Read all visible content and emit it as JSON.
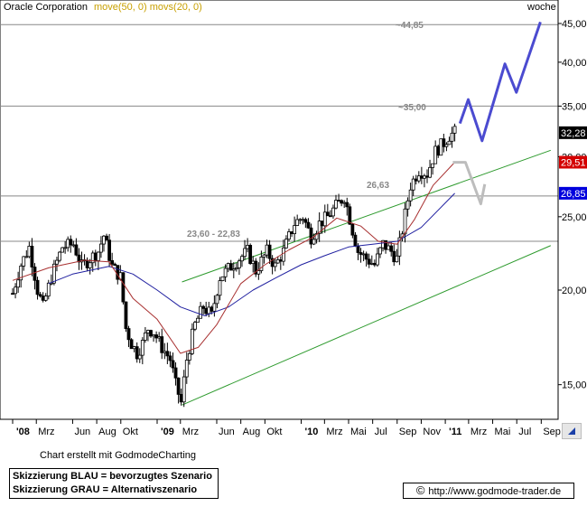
{
  "header": {
    "ticker_label": "Oracle Corporation",
    "indicators": "move(50, 0) movs(20, 0)",
    "period": "woche"
  },
  "annotations": {
    "target_high": "~44,85",
    "target_mid": "~35,00",
    "level_26": "26,63",
    "level_23": "23,60 - 22,83"
  },
  "price_badges": {
    "last_close": "32,28",
    "ma20_value": "29,51",
    "ma50_value": "26,85"
  },
  "footer": {
    "credit": "Chart erstellt mit GodmodeCharting",
    "legend_blue": "Skizzierung BLAU = bevorzugtes Szenario",
    "legend_gray": "Skizzierung GRAU = Alternativszenario",
    "url": "http://www.godmode-trader.de",
    "copyright_symbol": "©"
  },
  "chart_data": {
    "type": "candlestick",
    "title": "Oracle Corporation",
    "y_axis": {
      "scale": "log",
      "ylim": [
        13.5,
        46
      ],
      "ticks": [
        15,
        20,
        25,
        30,
        35,
        40,
        45
      ],
      "tick_labels": [
        "15,00",
        "20,00",
        "25,00",
        "30,00",
        "35,00",
        "40,00",
        "45,00"
      ]
    },
    "x_axis": {
      "range": [
        "2008-01-01",
        "2011-09-30"
      ],
      "ticks": [
        {
          "date": "2008-01-01",
          "label": "'08"
        },
        {
          "date": "2008-03-01",
          "label": "Mrz"
        },
        {
          "date": "2008-06-01",
          "label": "Jun"
        },
        {
          "date": "2008-08-01",
          "label": "Aug"
        },
        {
          "date": "2008-10-01",
          "label": "Okt"
        },
        {
          "date": "2009-01-01",
          "label": "'09"
        },
        {
          "date": "2009-03-01",
          "label": "Mrz"
        },
        {
          "date": "2009-06-01",
          "label": "Jun"
        },
        {
          "date": "2009-08-01",
          "label": "Aug"
        },
        {
          "date": "2009-10-01",
          "label": "Okt"
        },
        {
          "date": "2010-01-01",
          "label": "'10"
        },
        {
          "date": "2010-03-01",
          "label": "Mrz"
        },
        {
          "date": "2010-05-01",
          "label": "Mai"
        },
        {
          "date": "2010-07-01",
          "label": "Jul"
        },
        {
          "date": "2010-09-01",
          "label": "Sep"
        },
        {
          "date": "2010-11-01",
          "label": "Nov"
        },
        {
          "date": "2011-01-01",
          "label": "'11"
        },
        {
          "date": "2011-03-01",
          "label": "Mrz"
        },
        {
          "date": "2011-05-01",
          "label": "Mai"
        },
        {
          "date": "2011-07-01",
          "label": "Jul"
        },
        {
          "date": "2011-09-01",
          "label": "Sep"
        }
      ]
    },
    "horizontal_levels": [
      44.85,
      35.0,
      26.63,
      23.2
    ],
    "price_path": [
      [
        "2008-01-01",
        19.8
      ],
      [
        "2008-01-22",
        21.6
      ],
      [
        "2008-02-12",
        22.8
      ],
      [
        "2008-03-04",
        20.0
      ],
      [
        "2008-03-18",
        19.0
      ],
      [
        "2008-04-08",
        20.8
      ],
      [
        "2008-05-06",
        22.8
      ],
      [
        "2008-06-03",
        23.0
      ],
      [
        "2008-06-24",
        21.5
      ],
      [
        "2008-07-15",
        22.0
      ],
      [
        "2008-08-05",
        22.5
      ],
      [
        "2008-08-19",
        23.6
      ],
      [
        "2008-09-09",
        21.5
      ],
      [
        "2008-09-30",
        20.8
      ],
      [
        "2008-10-14",
        17.8
      ],
      [
        "2008-10-28",
        17.0
      ],
      [
        "2008-11-11",
        16.5
      ],
      [
        "2008-11-25",
        17.0
      ],
      [
        "2008-12-09",
        17.8
      ],
      [
        "2008-12-23",
        17.6
      ],
      [
        "2009-01-13",
        16.8
      ],
      [
        "2009-02-03",
        16.2
      ],
      [
        "2009-02-17",
        15.0
      ],
      [
        "2009-03-03",
        14.2
      ],
      [
        "2009-03-17",
        16.2
      ],
      [
        "2009-04-07",
        18.0
      ],
      [
        "2009-04-28",
        19.0
      ],
      [
        "2009-05-19",
        18.5
      ],
      [
        "2009-06-09",
        20.8
      ],
      [
        "2009-07-07",
        21.5
      ],
      [
        "2009-07-28",
        22.0
      ],
      [
        "2009-08-18",
        22.5
      ],
      [
        "2009-09-08",
        21.2
      ],
      [
        "2009-10-06",
        22.5
      ],
      [
        "2009-10-27",
        21.5
      ],
      [
        "2009-11-17",
        22.5
      ],
      [
        "2009-12-15",
        24.5
      ],
      [
        "2010-01-05",
        25.0
      ],
      [
        "2010-01-26",
        23.5
      ],
      [
        "2010-02-16",
        24.5
      ],
      [
        "2010-03-09",
        25.0
      ],
      [
        "2010-03-30",
        25.8
      ],
      [
        "2010-04-20",
        26.6
      ],
      [
        "2010-05-11",
        24.0
      ],
      [
        "2010-05-25",
        22.5
      ],
      [
        "2010-06-15",
        22.0
      ],
      [
        "2010-07-06",
        21.6
      ],
      [
        "2010-07-27",
        23.0
      ],
      [
        "2010-08-17",
        22.5
      ],
      [
        "2010-08-31",
        22.0
      ],
      [
        "2010-09-14",
        24.0
      ],
      [
        "2010-10-05",
        27.5
      ],
      [
        "2010-10-26",
        28.8
      ],
      [
        "2010-11-16",
        28.5
      ],
      [
        "2010-12-07",
        30.5
      ],
      [
        "2010-12-28",
        31.3
      ],
      [
        "2011-01-11",
        32.0
      ],
      [
        "2011-01-25",
        32.3
      ]
    ],
    "ma20": [
      [
        "2008-01-01",
        20.6
      ],
      [
        "2008-04-01",
        21.4
      ],
      [
        "2008-07-01",
        21.9
      ],
      [
        "2008-09-01",
        21.8
      ],
      [
        "2008-11-01",
        19.5
      ],
      [
        "2009-01-01",
        18.3
      ],
      [
        "2009-03-01",
        16.5
      ],
      [
        "2009-04-15",
        16.8
      ],
      [
        "2009-06-01",
        18.0
      ],
      [
        "2009-08-01",
        20.4
      ],
      [
        "2009-10-01",
        21.6
      ],
      [
        "2009-12-01",
        22.6
      ],
      [
        "2010-02-01",
        23.5
      ],
      [
        "2010-04-01",
        24.9
      ],
      [
        "2010-06-01",
        24.3
      ],
      [
        "2010-07-15",
        23.2
      ],
      [
        "2010-09-01",
        23.0
      ],
      [
        "2010-10-15",
        24.8
      ],
      [
        "2010-12-01",
        27.5
      ],
      [
        "2011-01-25",
        29.51
      ]
    ],
    "ma50": [
      [
        "2008-04-01",
        20.4
      ],
      [
        "2008-06-01",
        21.0
      ],
      [
        "2008-09-01",
        21.5
      ],
      [
        "2008-11-01",
        21.0
      ],
      [
        "2009-01-01",
        20.0
      ],
      [
        "2009-03-01",
        19.0
      ],
      [
        "2009-05-01",
        18.5
      ],
      [
        "2009-07-01",
        19.0
      ],
      [
        "2009-09-01",
        20.0
      ],
      [
        "2009-11-01",
        20.8
      ],
      [
        "2010-01-01",
        21.6
      ],
      [
        "2010-03-01",
        22.2
      ],
      [
        "2010-05-01",
        22.8
      ],
      [
        "2010-07-01",
        23.0
      ],
      [
        "2010-09-01",
        23.2
      ],
      [
        "2010-11-01",
        24.2
      ],
      [
        "2011-01-25",
        26.85
      ]
    ],
    "channel_upper": [
      [
        "2009-03-05",
        20.5
      ],
      [
        "2011-09-25",
        30.6
      ]
    ],
    "channel_lower": [
      [
        "2009-03-05",
        14.1
      ],
      [
        "2011-09-25",
        22.9
      ]
    ],
    "scenario_blue": [
      [
        "2011-02-07",
        33.2
      ],
      [
        "2011-02-28",
        35.7
      ],
      [
        "2011-04-04",
        31.5
      ],
      [
        "2011-06-01",
        39.8
      ],
      [
        "2011-06-30",
        36.5
      ],
      [
        "2011-08-30",
        45.2
      ]
    ],
    "scenario_gray": [
      [
        "2011-01-20",
        29.5
      ],
      [
        "2011-02-21",
        29.5
      ],
      [
        "2011-04-01",
        26.0
      ],
      [
        "2011-04-11",
        27.6
      ]
    ],
    "colors": {
      "blue_scenario": "#4b4bd0",
      "gray_scenario": "#bdbdbd",
      "channel": "#2d9a2d",
      "ma20": "#a83030",
      "ma50": "#2020a0",
      "level": "#888888",
      "ma20_badge": "#d40000",
      "ma50_badge": "#0000dd"
    }
  }
}
